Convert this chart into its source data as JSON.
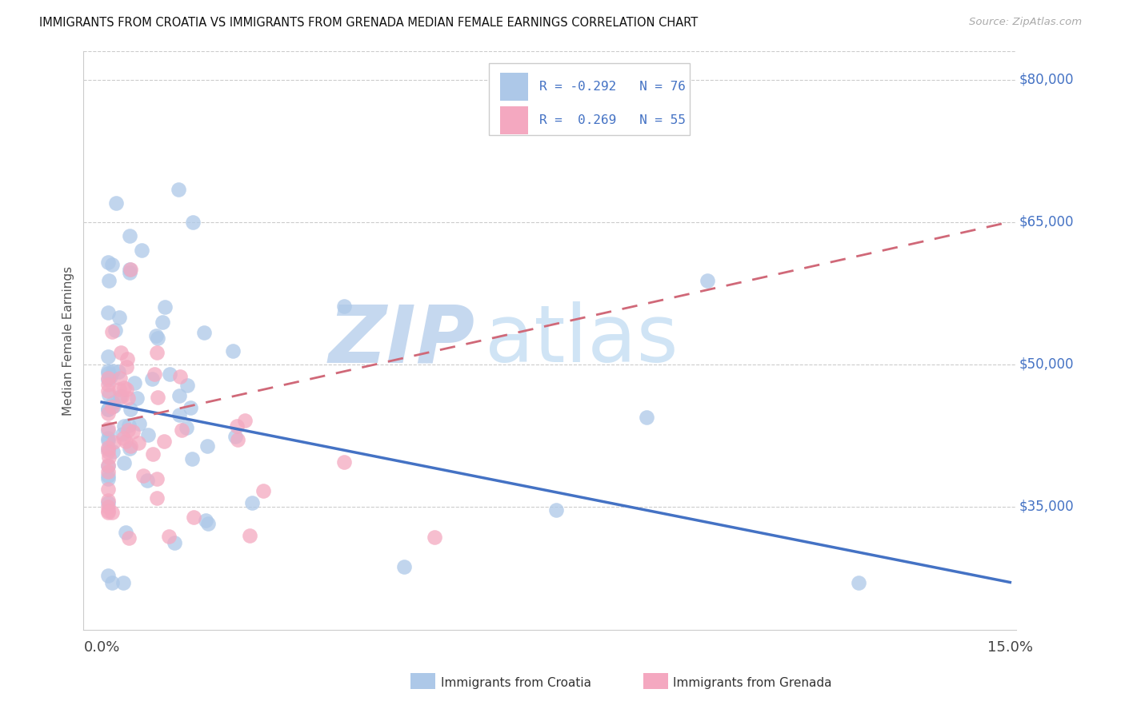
{
  "title": "IMMIGRANTS FROM CROATIA VS IMMIGRANTS FROM GRENADA MEDIAN FEMALE EARNINGS CORRELATION CHART",
  "source": "Source: ZipAtlas.com",
  "ylabel": "Median Female Earnings",
  "y_ticks": [
    35000,
    50000,
    65000,
    80000
  ],
  "y_tick_labels": [
    "$35,000",
    "$50,000",
    "$65,000",
    "$80,000"
  ],
  "watermark_zip": "ZIP",
  "watermark_atlas": "atlas",
  "legend_croatia_R": "-0.292",
  "legend_croatia_N": "76",
  "legend_grenada_R": "0.269",
  "legend_grenada_N": "55",
  "legend_label_croatia": "Immigrants from Croatia",
  "legend_label_grenada": "Immigrants from Grenada",
  "croatia_color": "#adc8e8",
  "grenada_color": "#f4a8c0",
  "croatia_line_color": "#4472C4",
  "grenada_line_color": "#d06878",
  "background_color": "#ffffff",
  "x_min": 0.0,
  "x_max": 0.15,
  "y_min": 22000,
  "y_max": 83000,
  "croatia_line_x0": 0.0,
  "croatia_line_x1": 0.15,
  "croatia_line_y0": 46000,
  "croatia_line_y1": 27000,
  "grenada_line_x0": 0.0,
  "grenada_line_x1": 0.15,
  "grenada_line_y0": 43500,
  "grenada_line_y1": 65000
}
